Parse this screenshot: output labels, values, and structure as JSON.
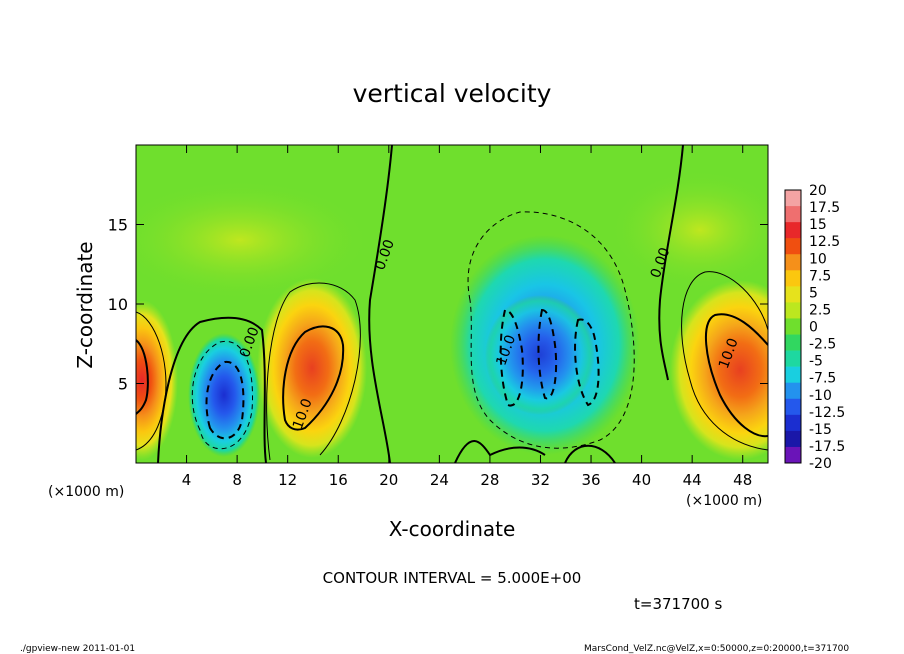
{
  "chart_data": {
    "type": "heatmap",
    "title": "vertical velocity",
    "xlabel": "X-coordinate",
    "ylabel": "Z-coordinate",
    "x_unit": "(×1000 m)",
    "xlim": [
      0,
      50
    ],
    "ylim": [
      0,
      20
    ],
    "x_ticks": [
      4,
      8,
      12,
      16,
      20,
      24,
      28,
      32,
      36,
      40,
      44,
      48
    ],
    "y_ticks": [
      5,
      10,
      15
    ],
    "contour_interval_label": "CONTOUR INTERVAL = 5.000E+00",
    "time_label": "t=371700 s",
    "contour_labels": [
      {
        "text": "0.00",
        "x": 9.3,
        "y": 7.5
      },
      {
        "text": "10.0",
        "x": 13.5,
        "y": 3.0
      },
      {
        "text": "0.00",
        "x": 20.0,
        "y": 13.0
      },
      {
        "text": "10.0",
        "x": 29.6,
        "y": 7.0
      },
      {
        "text": "0.00",
        "x": 41.8,
        "y": 12.5
      },
      {
        "text": "10.0",
        "x": 47.2,
        "y": 6.8
      }
    ],
    "colorbar": {
      "levels": [
        "20",
        "17.5",
        "15",
        "12.5",
        "10",
        "7.5",
        "5",
        "2.5",
        "0",
        "-2.5",
        "-5",
        "-7.5",
        "-10",
        "-12.5",
        "-15",
        "-17.5",
        "-20"
      ],
      "colors": [
        "#f4a3a3",
        "#ef6f6f",
        "#e8282a",
        "#f04f10",
        "#f5901a",
        "#fbc70f",
        "#e6e21c",
        "#bce71f",
        "#6fdf2d",
        "#31d760",
        "#1ed8a0",
        "#19cfe0",
        "#2392ee",
        "#2458ec",
        "#1b2ed0",
        "#1a17a8",
        "#6a14b8"
      ]
    },
    "features": [
      {
        "kind": "updraft",
        "center_x": 0.5,
        "center_z": 5.5,
        "peak": 15
      },
      {
        "kind": "downdraft",
        "center_x": 7.0,
        "center_z": 4.0,
        "peak": -15
      },
      {
        "kind": "updraft",
        "center_x": 14.0,
        "center_z": 5.5,
        "peak": 14
      },
      {
        "kind": "downdraft",
        "center_x": 32.0,
        "center_z": 6.5,
        "peak": -12
      },
      {
        "kind": "updraft",
        "center_x": 48.0,
        "center_z": 5.0,
        "peak": 15
      }
    ]
  },
  "footer": {
    "left": "./gpview-new   2011-01-01",
    "right": "MarsCond_VelZ.nc@VelZ,x=0:50000,z=0:20000,t=371700"
  }
}
